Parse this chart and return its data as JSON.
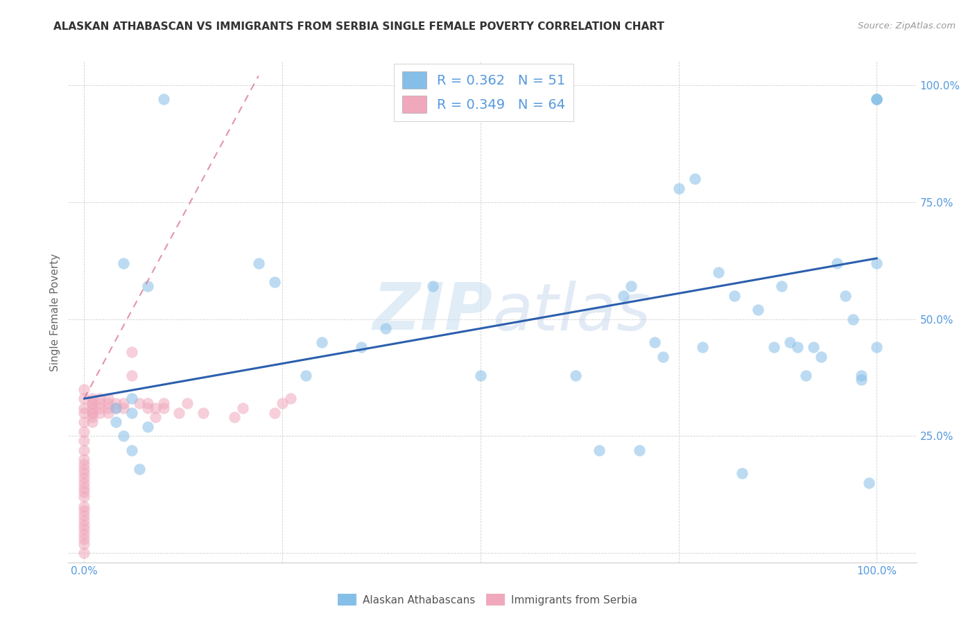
{
  "title": "ALASKAN ATHABASCAN VS IMMIGRANTS FROM SERBIA SINGLE FEMALE POVERTY CORRELATION CHART",
  "source": "Source: ZipAtlas.com",
  "ylabel": "Single Female Poverty",
  "xlim": [
    -0.02,
    1.05
  ],
  "ylim": [
    -0.02,
    1.05
  ],
  "xticks": [
    0.0,
    0.25,
    0.5,
    0.75,
    1.0
  ],
  "xticklabels": [
    "0.0%",
    "",
    "",
    "",
    "100.0%"
  ],
  "yticks": [
    0.0,
    0.25,
    0.5,
    0.75,
    1.0
  ],
  "yticklabels": [
    "",
    "25.0%",
    "50.0%",
    "75.0%",
    "100.0%"
  ],
  "legend_r_blue": "R = 0.362",
  "legend_n_blue": "N = 51",
  "legend_r_pink": "R = 0.349",
  "legend_n_pink": "N = 64",
  "legend_label_blue": "Alaskan Athabascans",
  "legend_label_pink": "Immigrants from Serbia",
  "blue_scatter_x": [
    0.1,
    0.05,
    0.08,
    0.06,
    0.06,
    0.08,
    0.04,
    0.04,
    0.05,
    0.06,
    0.07,
    0.22,
    0.24,
    0.3,
    0.28,
    0.35,
    0.38,
    0.44,
    0.5,
    0.62,
    0.68,
    0.69,
    0.72,
    0.73,
    0.75,
    0.77,
    0.78,
    0.8,
    0.82,
    0.85,
    0.87,
    0.88,
    0.89,
    0.9,
    0.91,
    0.92,
    0.93,
    0.95,
    0.96,
    0.97,
    0.98,
    0.98,
    0.99,
    1.0,
    1.0,
    1.0,
    1.0,
    1.0,
    0.65,
    0.7,
    0.83
  ],
  "blue_scatter_y": [
    0.97,
    0.62,
    0.57,
    0.33,
    0.3,
    0.27,
    0.31,
    0.28,
    0.25,
    0.22,
    0.18,
    0.62,
    0.58,
    0.45,
    0.38,
    0.44,
    0.48,
    0.57,
    0.38,
    0.38,
    0.55,
    0.57,
    0.45,
    0.42,
    0.78,
    0.8,
    0.44,
    0.6,
    0.55,
    0.52,
    0.44,
    0.57,
    0.45,
    0.44,
    0.38,
    0.44,
    0.42,
    0.62,
    0.55,
    0.5,
    0.38,
    0.37,
    0.15,
    0.97,
    0.97,
    0.97,
    0.62,
    0.44,
    0.22,
    0.22,
    0.17
  ],
  "pink_scatter_x": [
    0.0,
    0.0,
    0.0,
    0.0,
    0.0,
    0.0,
    0.0,
    0.0,
    0.0,
    0.0,
    0.0,
    0.0,
    0.0,
    0.0,
    0.0,
    0.0,
    0.0,
    0.0,
    0.0,
    0.0,
    0.0,
    0.0,
    0.0,
    0.0,
    0.0,
    0.0,
    0.0,
    0.01,
    0.01,
    0.01,
    0.01,
    0.01,
    0.01,
    0.01,
    0.01,
    0.02,
    0.02,
    0.02,
    0.02,
    0.03,
    0.03,
    0.03,
    0.03,
    0.04,
    0.04,
    0.05,
    0.05,
    0.06,
    0.06,
    0.07,
    0.08,
    0.08,
    0.09,
    0.09,
    0.1,
    0.1,
    0.12,
    0.13,
    0.15,
    0.19,
    0.2,
    0.24,
    0.25,
    0.26
  ],
  "pink_scatter_y": [
    0.0,
    0.02,
    0.03,
    0.04,
    0.05,
    0.06,
    0.07,
    0.08,
    0.09,
    0.1,
    0.12,
    0.13,
    0.14,
    0.15,
    0.16,
    0.17,
    0.18,
    0.19,
    0.2,
    0.22,
    0.24,
    0.26,
    0.28,
    0.3,
    0.31,
    0.33,
    0.35,
    0.3,
    0.31,
    0.32,
    0.33,
    0.28,
    0.29,
    0.3,
    0.32,
    0.3,
    0.31,
    0.32,
    0.33,
    0.3,
    0.31,
    0.32,
    0.33,
    0.31,
    0.32,
    0.31,
    0.32,
    0.43,
    0.38,
    0.32,
    0.31,
    0.32,
    0.31,
    0.29,
    0.31,
    0.32,
    0.3,
    0.32,
    0.3,
    0.29,
    0.31,
    0.3,
    0.32,
    0.33
  ],
  "pink_single_x": [
    0.04
  ],
  "pink_single_y": [
    0.43
  ],
  "blue_line_x": [
    0.0,
    1.0
  ],
  "blue_line_y": [
    0.33,
    0.63
  ],
  "pink_line_x": [
    0.0,
    0.22
  ],
  "pink_line_y": [
    0.33,
    1.02
  ],
  "watermark_zip": "ZIP",
  "watermark_atlas": "atlas",
  "bg_color": "#ffffff",
  "blue_color": "#85bfe8",
  "pink_color": "#f0a8bc",
  "blue_line_color": "#2b5fad",
  "pink_line_color": "#d97090",
  "grid_color": "#d0d0d0",
  "tick_color": "#5599dd",
  "ylabel_color": "#666666",
  "title_color": "#333333",
  "source_color": "#999999"
}
